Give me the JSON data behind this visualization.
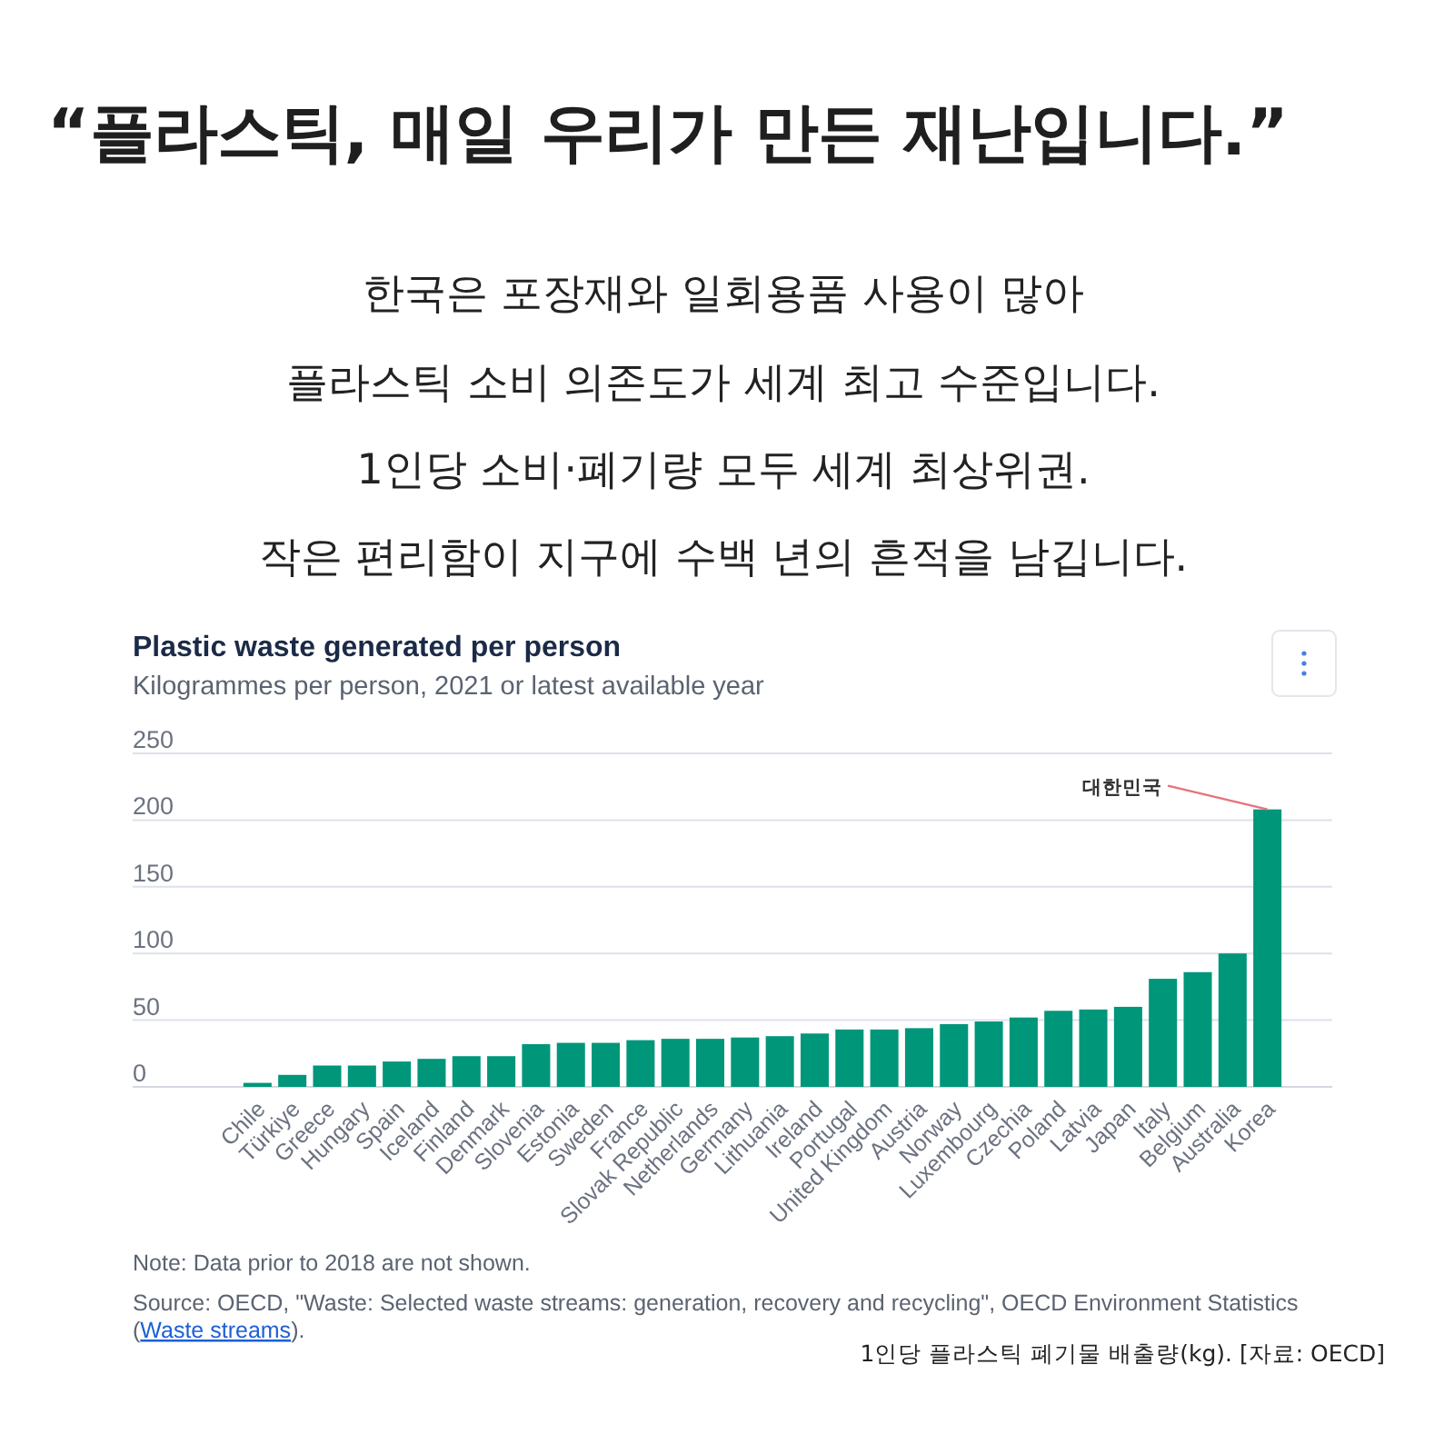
{
  "chart_data": {
    "type": "bar",
    "title": "Plastic waste generated per person",
    "subtitle": "Kilogrammes per person, 2021 or latest available year",
    "categories": [
      "Chile",
      "Türkiye",
      "Greece",
      "Hungary",
      "Spain",
      "Iceland",
      "Finland",
      "Denmark",
      "Slovenia",
      "Estonia",
      "Sweden",
      "France",
      "Slovak Republic",
      "Netherlands",
      "Germany",
      "Lithuania",
      "Ireland",
      "Portugal",
      "United Kingdom",
      "Austria",
      "Norway",
      "Luxembourg",
      "Czechia",
      "Poland",
      "Latvia",
      "Japan",
      "Italy",
      "Belgium",
      "Australia",
      "Korea"
    ],
    "values": [
      3,
      9,
      16,
      16,
      19,
      21,
      23,
      23,
      32,
      33,
      33,
      35,
      36,
      36,
      37,
      38,
      40,
      43,
      43,
      44,
      47,
      49,
      52,
      57,
      58,
      60,
      81,
      86,
      100,
      208
    ],
    "color": "#00967a",
    "ylim": [
      0,
      250
    ],
    "yticks": [
      0,
      50,
      100,
      150,
      200,
      250
    ],
    "grid": "y",
    "annotations": [
      "“플라스틱, 매일 우리가 만든 재난입니다.”",
      "한국은 포장재와 일회용품 사용이 많아",
      "플라스틱 소비 의존도가 세계 최고 수준입니다.",
      "1인당 소비·폐기량 모두 세계 최상위권.",
      "작은 편리함이 지구에 수백 년의 흔적을 남깁니다.",
      "Note: Data prior to 2018 are not shown.",
      "Source: OECD, \"Waste: Selected waste streams: generation, recovery and recycling\", OECD Environment Statistics (Waste streams).",
      "1인당 플라스틱 폐기물 배출량(kg). [자료: OECD]",
      {
        "text": "대한민국",
        "x": "Korea",
        "y": 208
      }
    ]
  }
}
